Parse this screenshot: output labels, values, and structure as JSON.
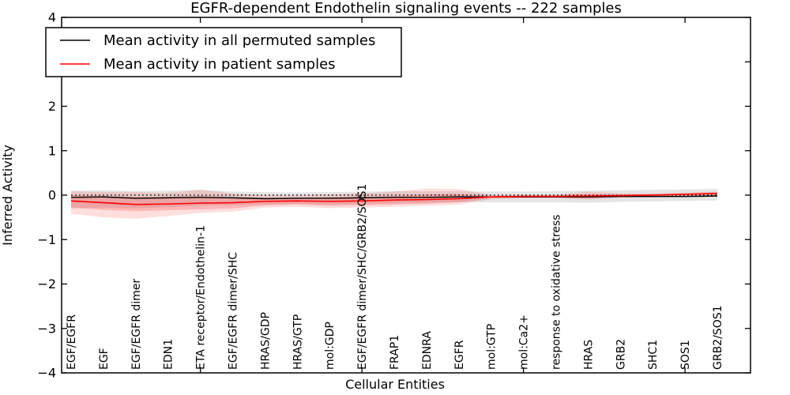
{
  "title": "EGFR-dependent Endothelin signaling events -- 222 samples",
  "legend": {
    "position": "upper left",
    "items": [
      {
        "label": "Mean activity in all permuted samples",
        "color": "#000000"
      },
      {
        "label": "Mean activity in patient samples",
        "color": "#ff0000"
      }
    ]
  },
  "chart_data": {
    "type": "line",
    "title": "EGFR-dependent Endothelin signaling events -- 222 samples",
    "xlabel": "Cellular Entities",
    "ylabel": "Inferred Activity",
    "ylim": [
      -4,
      4
    ],
    "yticks": [
      -4,
      -3,
      -2,
      -1,
      0,
      1,
      2,
      3,
      4
    ],
    "ytick_labels": [
      "−4",
      "−3",
      "−2",
      "−1",
      "0",
      "1",
      "2",
      "3",
      "4"
    ],
    "grid": false,
    "legend_position": "upper left",
    "top_ticks_at_category_index": [
      4,
      9,
      14,
      19
    ],
    "categories": [
      "EGF/EGFR",
      "EGF",
      "EGF/EGFR dimer",
      "EDN1",
      "ETA receptor/Endothelin-1",
      "EGF/EGFR dimer/SHC",
      "HRAS/GDP",
      "HRAS/GTP",
      "mol:GDP",
      "EGF/EGFR dimer/SHC/GRB2/SOS1",
      "FRAP1",
      "EDNRA",
      "EGFR",
      "mol:GTP",
      "mol:Ca2+",
      "response to oxidative stress",
      "HRAS",
      "GRB2",
      "SHC1",
      "SOS1",
      "GRB2/SOS1"
    ],
    "series": [
      {
        "name": "zero reference",
        "color": "#000000",
        "style": "dotted",
        "width": 1.3,
        "values": [
          0,
          0,
          0,
          0,
          0,
          0,
          0,
          0,
          0,
          0,
          0,
          0,
          0,
          0,
          0,
          0,
          0,
          0,
          0,
          0,
          0
        ]
      },
      {
        "name": "Mean activity in all permuted samples",
        "color": "#000000",
        "style": "solid",
        "width": 1.4,
        "values": [
          -0.05,
          -0.04,
          -0.07,
          -0.06,
          -0.05,
          -0.06,
          -0.08,
          -0.07,
          -0.07,
          -0.06,
          -0.05,
          -0.05,
          -0.04,
          -0.04,
          -0.04,
          -0.04,
          -0.04,
          -0.03,
          -0.03,
          -0.03,
          -0.02
        ]
      },
      {
        "name": "Mean activity in patient samples",
        "color": "#ff0000",
        "style": "solid",
        "width": 1.6,
        "values": [
          -0.13,
          -0.17,
          -0.21,
          -0.2,
          -0.18,
          -0.17,
          -0.14,
          -0.13,
          -0.14,
          -0.13,
          -0.11,
          -0.1,
          -0.08,
          -0.04,
          -0.03,
          -0.03,
          -0.02,
          -0.01,
          0.0,
          0.02,
          0.04
        ]
      }
    ],
    "bands": [
      {
        "name": "permuted samples spread",
        "color": "rgba(0,0,0,0.10)",
        "hi": [
          0.1,
          0.11,
          0.09,
          0.1,
          0.12,
          0.08,
          0.07,
          0.06,
          0.07,
          0.08,
          0.09,
          0.09,
          0.09,
          0.08,
          0.08,
          0.09,
          0.1,
          0.11,
          0.12,
          0.13,
          0.14
        ],
        "lo": [
          -0.3,
          -0.28,
          -0.3,
          -0.27,
          -0.24,
          -0.22,
          -0.21,
          -0.19,
          -0.21,
          -0.19,
          -0.18,
          -0.17,
          -0.16,
          -0.16,
          -0.16,
          -0.16,
          -0.17,
          -0.15,
          -0.14,
          -0.13,
          -0.12
        ]
      },
      {
        "name": "patient samples spread (outer)",
        "color": "rgba(255,0,0,0.13)",
        "hi": [
          0.09,
          0.07,
          0.07,
          0.05,
          0.12,
          0.04,
          0.0,
          -0.01,
          0.02,
          0.04,
          0.08,
          0.15,
          0.14,
          0.0,
          0.01,
          0.01,
          0.08,
          0.04,
          0.04,
          0.06,
          0.08
        ],
        "lo": [
          -0.42,
          -0.5,
          -0.53,
          -0.47,
          -0.4,
          -0.37,
          -0.28,
          -0.26,
          -0.29,
          -0.28,
          -0.26,
          -0.24,
          -0.21,
          -0.09,
          -0.07,
          -0.07,
          -0.1,
          -0.06,
          -0.05,
          -0.03,
          -0.02
        ]
      },
      {
        "name": "patient samples spread (inner)",
        "color": "rgba(255,0,0,0.18)",
        "hi": [
          0.0,
          -0.02,
          -0.04,
          -0.04,
          -0.02,
          -0.05,
          -0.06,
          -0.06,
          -0.05,
          -0.04,
          -0.02,
          0.02,
          0.03,
          -0.02,
          -0.01,
          -0.01,
          0.02,
          0.01,
          0.02,
          0.03,
          0.05
        ],
        "lo": [
          -0.28,
          -0.33,
          -0.36,
          -0.34,
          -0.32,
          -0.3,
          -0.23,
          -0.21,
          -0.24,
          -0.23,
          -0.21,
          -0.19,
          -0.16,
          -0.07,
          -0.05,
          -0.05,
          -0.08,
          -0.04,
          -0.03,
          -0.01,
          0.0
        ]
      }
    ]
  }
}
